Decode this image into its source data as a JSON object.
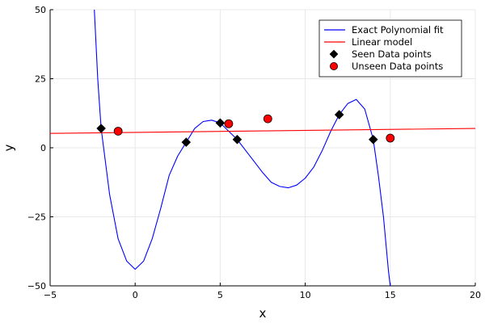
{
  "chart_data": {
    "type": "scatter",
    "xlabel": "x",
    "ylabel": "y",
    "xlim": [
      -5,
      20
    ],
    "ylim": [
      -50,
      50
    ],
    "x_ticks": [
      -5,
      0,
      5,
      10,
      15,
      20
    ],
    "y_ticks": [
      -50,
      -25,
      0,
      25,
      50
    ],
    "x_tick_labels": [
      "−5",
      "0",
      "5",
      "10",
      "15",
      "20"
    ],
    "y_tick_labels": [
      "−50",
      "−25",
      "0",
      "25",
      "50"
    ],
    "grid": true,
    "legend_position": "top-right",
    "series": [
      {
        "name": "Exact Polynomial fit",
        "kind": "curve",
        "color": "#0000ff",
        "x": [
          -2.4,
          -2.2,
          -2.0,
          -1.5,
          -1.0,
          -0.5,
          0.0,
          0.5,
          1.0,
          1.5,
          2.0,
          2.5,
          3.0,
          3.5,
          4.0,
          4.5,
          5.0,
          5.5,
          6.0,
          6.5,
          7.0,
          7.5,
          8.0,
          8.5,
          9.0,
          9.5,
          10.0,
          10.5,
          11.0,
          11.5,
          12.0,
          12.5,
          13.0,
          13.5,
          14.0,
          14.3,
          14.6,
          14.9,
          15.0
        ],
        "y": [
          50,
          25,
          7,
          -17,
          -33,
          -41,
          -44,
          -41,
          -33,
          -22,
          -10,
          -3,
          2,
          7,
          9.5,
          10,
          9,
          6,
          3,
          -1,
          -5,
          -9,
          -12.5,
          -14,
          -14.5,
          -13.5,
          -11,
          -7,
          -1,
          6,
          12,
          16,
          17.5,
          14,
          3,
          -10,
          -25,
          -45,
          -50
        ]
      },
      {
        "name": "Linear model",
        "kind": "line",
        "color": "#ff0000",
        "x": [
          -5,
          20
        ],
        "y": [
          5.2,
          7.0
        ]
      },
      {
        "name": "Seen Data points",
        "kind": "points",
        "marker": "diamond",
        "color": "#000000",
        "x": [
          -2,
          3,
          5,
          6,
          12,
          14
        ],
        "y": [
          7,
          2,
          9,
          3,
          12,
          3
        ]
      },
      {
        "name": "Unseen Data points",
        "kind": "points",
        "marker": "circle",
        "color": "#ff0000",
        "x": [
          -1,
          5.5,
          7.8,
          15
        ],
        "y": [
          6,
          8.7,
          10.5,
          3.5
        ]
      }
    ]
  }
}
